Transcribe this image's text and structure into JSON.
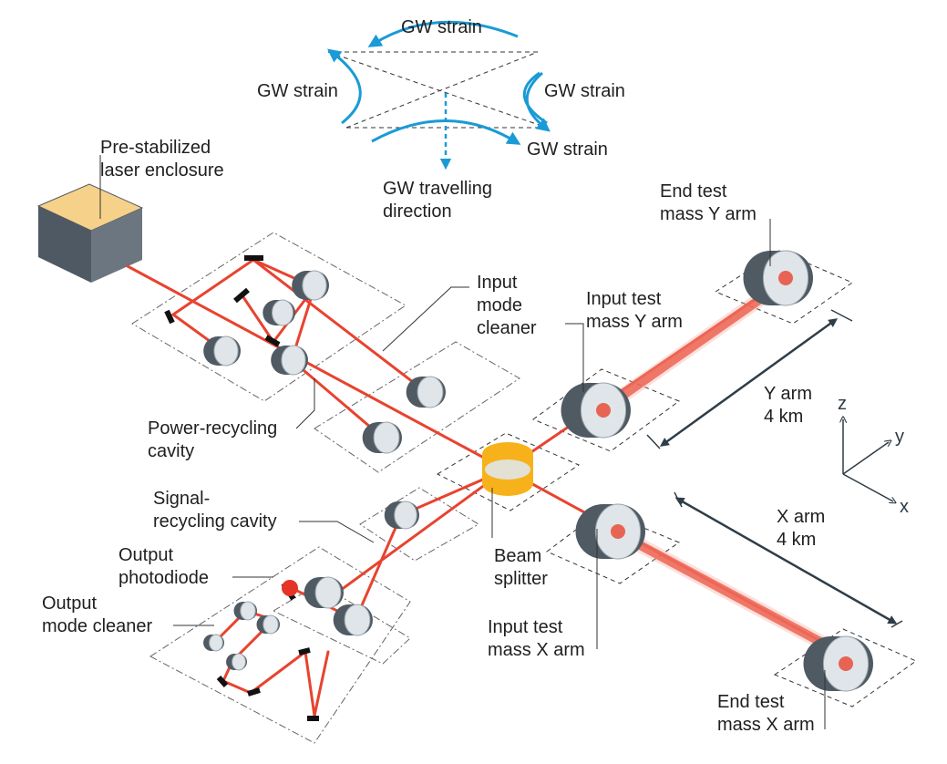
{
  "gw": {
    "strain_top": "GW strain",
    "strain_left": "GW strain",
    "strain_right": "GW strain",
    "strain_bottom": "GW strain",
    "travel": [
      "GW travelling",
      "direction"
    ]
  },
  "labels": {
    "laser": [
      "Pre-stabilized",
      "laser enclosure"
    ],
    "input_mode_cleaner": [
      "Input",
      "mode",
      "cleaner"
    ],
    "power_recycling": [
      "Power-recycling",
      "cavity"
    ],
    "signal_recycling": [
      "Signal-",
      "recycling cavity"
    ],
    "output_photodiode": [
      "Output",
      "photodiode"
    ],
    "output_mode_cleaner": [
      "Output",
      "mode cleaner"
    ],
    "beam_splitter": [
      "Beam",
      "splitter"
    ],
    "input_test_mass_y": [
      "Input test",
      "mass Y arm"
    ],
    "end_test_mass_y": [
      "End test",
      "mass Y arm"
    ],
    "input_test_mass_x": [
      "Input test",
      "mass X arm"
    ],
    "end_test_mass_x": [
      "End test",
      "mass X arm"
    ],
    "y_arm": [
      "Y arm",
      "4 km"
    ],
    "x_arm": [
      "X arm",
      "4 km"
    ]
  },
  "axes": {
    "z": "z",
    "y": "y",
    "x": "x"
  },
  "colors": {
    "laser_beam": "#e8432f",
    "gw_arrow": "#1a9ad6",
    "optic_dark": "#4f5a63",
    "optic_face": "#dfe5e9",
    "splitter": "#f7b21b",
    "laser_box_top": "#f6d189",
    "laser_box_side": "#4f5963",
    "photodiode": "#e53327",
    "dimension_line": "#2f3d47"
  }
}
